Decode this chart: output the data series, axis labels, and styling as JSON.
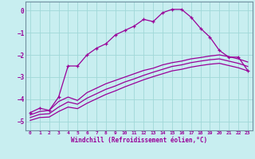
{
  "xlabel": "Windchill (Refroidissement éolien,°C)",
  "background_color": "#c8eef0",
  "line_color": "#990099",
  "grid_color": "#a0d8d8",
  "xlim": [
    -0.5,
    23.5
  ],
  "ylim": [
    -5.4,
    0.4
  ],
  "xticks": [
    0,
    1,
    2,
    3,
    4,
    5,
    6,
    7,
    8,
    9,
    10,
    11,
    12,
    13,
    14,
    15,
    16,
    17,
    18,
    19,
    20,
    21,
    22,
    23
  ],
  "yticks": [
    0,
    -1,
    -2,
    -3,
    -4,
    -5
  ],
  "curve1_x": [
    0,
    1,
    2,
    3,
    4,
    5,
    6,
    7,
    8,
    9,
    10,
    11,
    12,
    13,
    14,
    15,
    16,
    17,
    18,
    19,
    20,
    21,
    22,
    23
  ],
  "curve1_y": [
    -4.6,
    -4.4,
    -4.5,
    -3.9,
    -2.5,
    -2.5,
    -2.0,
    -1.7,
    -1.5,
    -1.1,
    -0.9,
    -0.7,
    -0.4,
    -0.5,
    -0.1,
    0.05,
    0.05,
    -0.3,
    -0.8,
    -1.2,
    -1.8,
    -2.1,
    -2.1,
    -2.7
  ],
  "curve2_x": [
    0,
    1,
    2,
    3,
    4,
    5,
    6,
    7,
    8,
    9,
    10,
    11,
    12,
    13,
    14,
    15,
    16,
    17,
    18,
    19,
    20,
    21,
    22,
    23
  ],
  "curve2_y": [
    -4.7,
    -4.55,
    -4.5,
    -4.1,
    -3.9,
    -4.05,
    -3.7,
    -3.5,
    -3.3,
    -3.15,
    -3.0,
    -2.85,
    -2.7,
    -2.6,
    -2.45,
    -2.35,
    -2.28,
    -2.18,
    -2.12,
    -2.05,
    -2.0,
    -2.08,
    -2.18,
    -2.32
  ],
  "curve3_x": [
    0,
    1,
    2,
    3,
    4,
    5,
    6,
    7,
    8,
    9,
    10,
    11,
    12,
    13,
    14,
    15,
    16,
    17,
    18,
    19,
    20,
    21,
    22,
    23
  ],
  "curve3_y": [
    -4.82,
    -4.68,
    -4.65,
    -4.35,
    -4.12,
    -4.22,
    -3.95,
    -3.75,
    -3.55,
    -3.4,
    -3.22,
    -3.08,
    -2.92,
    -2.78,
    -2.65,
    -2.52,
    -2.45,
    -2.35,
    -2.28,
    -2.22,
    -2.18,
    -2.28,
    -2.38,
    -2.52
  ],
  "curve4_x": [
    0,
    1,
    2,
    3,
    4,
    5,
    6,
    7,
    8,
    9,
    10,
    11,
    12,
    13,
    14,
    15,
    16,
    17,
    18,
    19,
    20,
    21,
    22,
    23
  ],
  "curve4_y": [
    -4.95,
    -4.82,
    -4.8,
    -4.55,
    -4.35,
    -4.42,
    -4.18,
    -3.98,
    -3.78,
    -3.62,
    -3.44,
    -3.28,
    -3.12,
    -2.98,
    -2.85,
    -2.72,
    -2.65,
    -2.55,
    -2.48,
    -2.42,
    -2.38,
    -2.48,
    -2.58,
    -2.72
  ]
}
